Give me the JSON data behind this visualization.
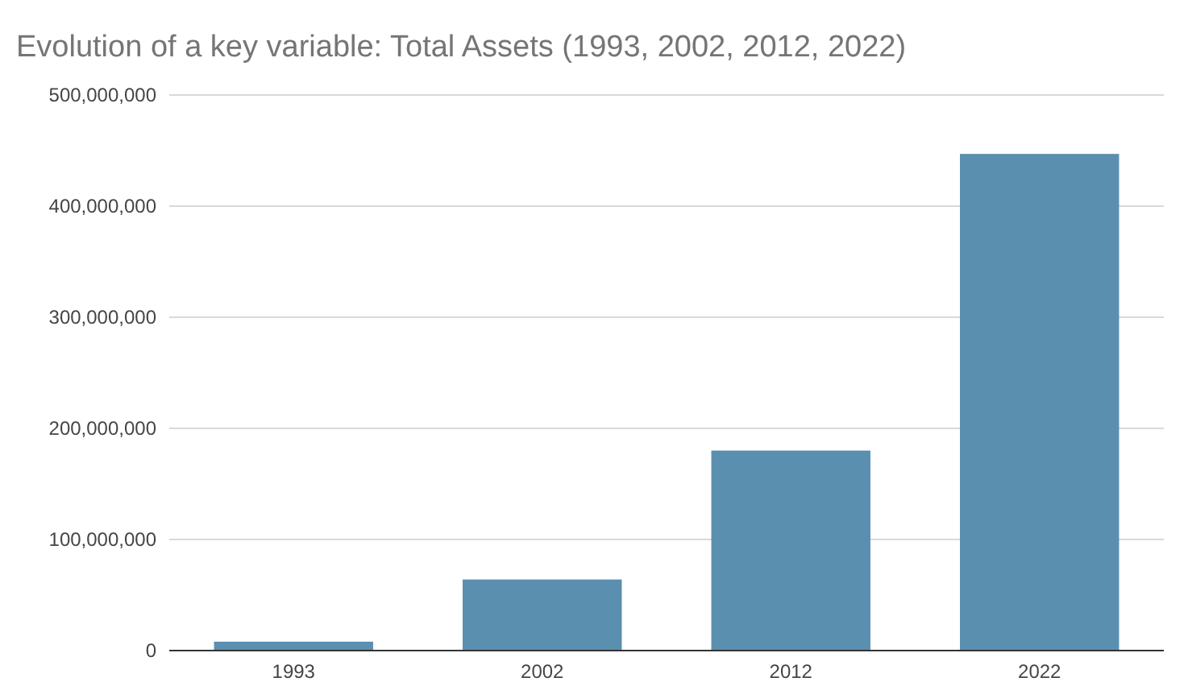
{
  "chart_data": {
    "type": "bar",
    "title": "Evolution of a key variable: Total Assets (1993, 2002, 2012, 2022)",
    "categories": [
      "1993",
      "2002",
      "2012",
      "2022"
    ],
    "values": [
      8000000,
      64000000,
      180000000,
      447000000
    ],
    "color": "#5b8fb0",
    "ylim": [
      0,
      500000000
    ],
    "yticks": [
      {
        "value": 0,
        "label": "0"
      },
      {
        "value": 100000000,
        "label": "100,000,000"
      },
      {
        "value": 200000000,
        "label": "200,000,000"
      },
      {
        "value": 300000000,
        "label": "300,000,000"
      },
      {
        "value": 400000000,
        "label": "400,000,000"
      },
      {
        "value": 500000000,
        "label": "500,000,000"
      }
    ],
    "grid": "y"
  }
}
